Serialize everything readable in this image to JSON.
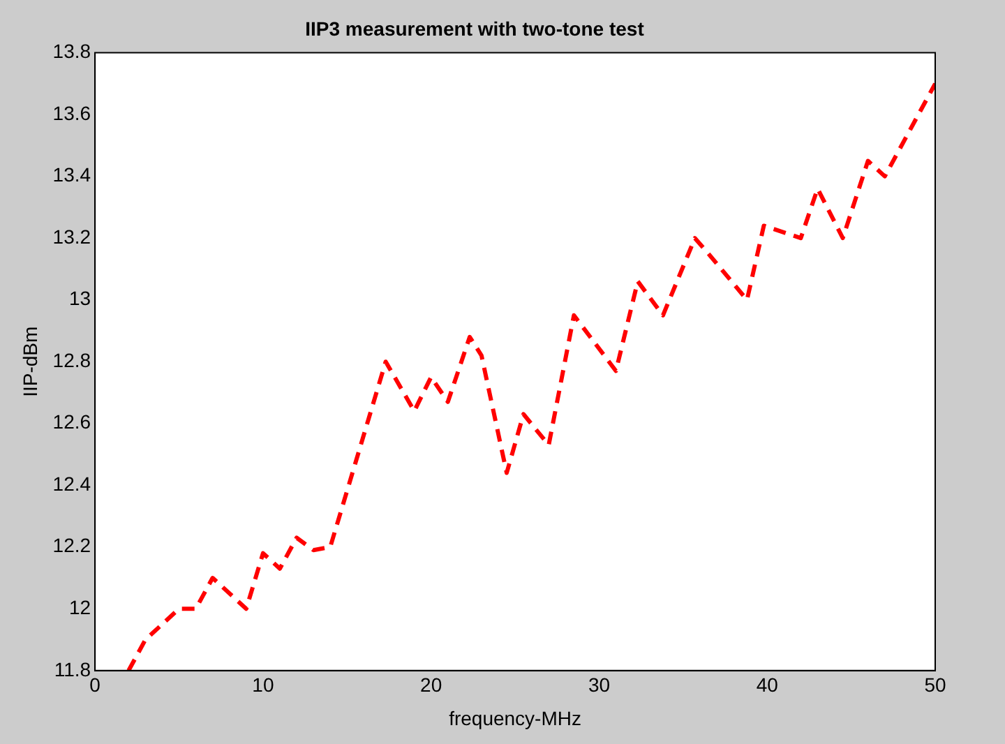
{
  "chart_data": {
    "type": "line",
    "title": "IIP3 measurement with two-tone test",
    "xlabel": "frequency-MHz",
    "ylabel": "IIP-dBm",
    "series": [
      {
        "color": "#ff0000",
        "x": [
          2,
          3,
          5,
          6,
          7,
          9,
          10,
          11,
          12,
          13,
          14,
          17.3,
          19,
          20,
          21,
          22.3,
          23,
          24.5,
          25.5,
          27,
          28.5,
          31,
          32.3,
          33.8,
          35.7,
          36.5,
          38.8,
          39.8,
          42,
          43,
          44.5,
          46,
          47,
          50
        ],
        "values": [
          11.8,
          11.9,
          12.0,
          12.0,
          12.1,
          12.0,
          12.18,
          12.13,
          12.23,
          12.19,
          12.2,
          12.8,
          12.64,
          12.75,
          12.67,
          12.88,
          12.82,
          12.44,
          12.63,
          12.53,
          12.95,
          12.77,
          13.06,
          12.95,
          13.2,
          13.15,
          13.0,
          13.24,
          13.2,
          13.36,
          13.2,
          13.45,
          13.4,
          13.7
        ]
      }
    ],
    "xlim": [
      0,
      50
    ],
    "xticks": [
      0,
      10,
      20,
      30,
      40,
      50
    ],
    "ylim": [
      11.8,
      13.8
    ],
    "yticks": [
      11.8,
      12,
      12.2,
      12.4,
      12.6,
      12.8,
      13,
      13.2,
      13.4,
      13.6,
      13.8
    ],
    "grid": false,
    "legend": false,
    "marker": "none",
    "line_style": "dashed"
  }
}
